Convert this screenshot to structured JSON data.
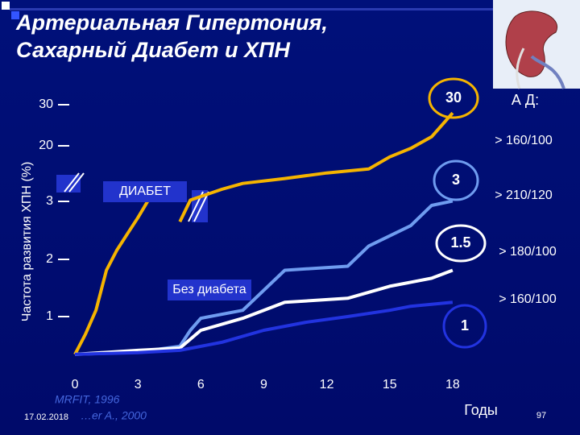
{
  "chart_data": {
    "type": "line",
    "title": [
      "Артериальная  Гипертония,",
      "Сахарный Диабет и ХПН"
    ],
    "y_label": "Частота развития ХПН (%)",
    "x_label": "Годы",
    "xlim": [
      -0.5,
      21
    ],
    "xticks": [
      0,
      3,
      6,
      9,
      12,
      15,
      18
    ],
    "yticks": [
      1,
      2,
      3,
      20,
      30
    ],
    "y_axis_broken": true,
    "legend_title": "А Д:",
    "series": [
      {
        "name": "> 160/100",
        "color": "#f5b400",
        "x": [
          0,
          0.5,
          1,
          1.5,
          2,
          2.5,
          3,
          3.5,
          4,
          4.5,
          5,
          5.5,
          7,
          8,
          10,
          12,
          14,
          15,
          16,
          17,
          18
        ],
        "values": [
          0.34,
          0.69,
          1.11,
          1.81,
          2.16,
          2.44,
          2.72,
          3.4,
          7.4,
          null,
          2.65,
          3.4,
          6.7,
          8.5,
          10,
          11.7,
          12.9,
          16.6,
          19.2,
          22.2,
          28
        ]
      },
      {
        "name": "> 210/120",
        "color": "#6f9cf0",
        "x": [
          0,
          3,
          5,
          5.5,
          6,
          8,
          10,
          13,
          14,
          16,
          17,
          18
        ],
        "values": [
          0.34,
          0.38,
          0.48,
          0.76,
          0.97,
          1.11,
          1.81,
          1.88,
          2.23,
          2.58,
          2.93,
          3.1
        ]
      },
      {
        "name": "> 180/100",
        "color": "#ffffff",
        "x": [
          0,
          3,
          5,
          6,
          8,
          9,
          10,
          13,
          15,
          17,
          18
        ],
        "values": [
          0.34,
          0.41,
          0.45,
          0.76,
          0.97,
          1.11,
          1.25,
          1.32,
          1.53,
          1.67,
          1.81
        ]
      },
      {
        "name": "> 160/100",
        "color": "#2233e0",
        "x": [
          0,
          3,
          5,
          7,
          9,
          11,
          13,
          15,
          16,
          18
        ],
        "values": [
          0.34,
          0.37,
          0.41,
          0.55,
          0.76,
          0.9,
          1.0,
          1.11,
          1.18,
          1.25
        ]
      }
    ],
    "annotations": [
      "30",
      "3",
      "1.5",
      "1",
      "ДИАБЕТ",
      "Без диабета"
    ]
  },
  "footer": {
    "sources": [
      "MRFIT, 1996",
      "…er A., 2000"
    ],
    "date": "17.02.2018",
    "page_number": "97"
  }
}
